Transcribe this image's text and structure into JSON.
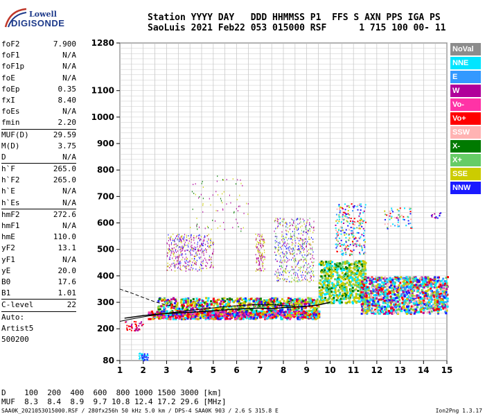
{
  "logo": {
    "line1": "Lowell",
    "line2": "DIGISONDE"
  },
  "header": {
    "line1": "Station YYYY DAY   DDD HHMMSS P1  FFS S AXN PPS IGA PS",
    "line2": "SaoLuis 2021 Feb22 053 015000 RSF      1 715 100 00- 11"
  },
  "params": [
    {
      "k": "foF2",
      "v": "7.900"
    },
    {
      "k": "foF1",
      "v": "N/A"
    },
    {
      "k": "foF1p",
      "v": "N/A"
    },
    {
      "k": "foE",
      "v": "N/A"
    },
    {
      "k": "foEp",
      "v": "0.35"
    },
    {
      "k": "fxI",
      "v": "8.40"
    },
    {
      "k": "foEs",
      "v": "N/A"
    },
    {
      "k": "fmin",
      "v": "2.20"
    },
    {
      "k": "MUF(D)",
      "v": "29.59",
      "sep": true
    },
    {
      "k": "M(D)",
      "v": "3.75"
    },
    {
      "k": "D",
      "v": "N/A"
    },
    {
      "k": "h`F",
      "v": "265.0",
      "sep": true
    },
    {
      "k": "h`F2",
      "v": "265.0"
    },
    {
      "k": "h`E",
      "v": "N/A"
    },
    {
      "k": "h`Es",
      "v": "N/A"
    },
    {
      "k": "hmF2",
      "v": "272.6",
      "sep": true
    },
    {
      "k": "hmF1",
      "v": "N/A"
    },
    {
      "k": "hmE",
      "v": "110.0"
    },
    {
      "k": "yF2",
      "v": "13.1"
    },
    {
      "k": "yF1",
      "v": "N/A"
    },
    {
      "k": "yE",
      "v": "20.0"
    },
    {
      "k": "B0",
      "v": "17.6"
    },
    {
      "k": "B1",
      "v": "1.01"
    },
    {
      "k": "C-level",
      "v": "22",
      "sep": true
    }
  ],
  "notes": [
    "Auto:",
    "Artist5",
    "500200"
  ],
  "legend": [
    {
      "label": "NoVal",
      "color": "#8c8c8c"
    },
    {
      "label": "NNE",
      "color": "#00e5ff"
    },
    {
      "label": "E",
      "color": "#3399ff"
    },
    {
      "label": "W",
      "color": "#b0009a"
    },
    {
      "label": "Vo-",
      "color": "#ff33a6"
    },
    {
      "label": "Vo+",
      "color": "#ff0000"
    },
    {
      "label": "SSW",
      "color": "#ffb3b3"
    },
    {
      "label": "X-",
      "color": "#007a00"
    },
    {
      "label": "X+",
      "color": "#66cc66"
    },
    {
      "label": "SSE",
      "color": "#cccc00"
    },
    {
      "label": "NNW",
      "color": "#1a1aff"
    }
  ],
  "muf_table": {
    "line1": "D    100  200  400  600  800 1000 1500 3000 [km]",
    "line2": "MUF  8.3  8.4  8.9  9.7 10.8 12.4 17.2 29.6 [MHz]"
  },
  "footer": {
    "left": "SAA0K_2021053015000.RSF / 280fx256h 50 kHz 5.0 km / DPS-4 SAA0K 903 / 2.6 S 315.8 E",
    "right": "Ion2Png 1.3.17"
  },
  "chart_data": {
    "type": "scatter",
    "xlabel": "",
    "ylabel": "",
    "xlim": [
      1,
      15
    ],
    "ylim": [
      80,
      1280
    ],
    "x_ticks": [
      "1",
      "2",
      "3",
      "4",
      "5",
      "6",
      "7",
      "8",
      "9",
      "10",
      "11",
      "12",
      "13",
      "14",
      "15"
    ],
    "y_ticks": [
      80,
      200,
      300,
      400,
      500,
      600,
      700,
      800,
      900,
      1000,
      1100,
      1280
    ],
    "grid": true,
    "series": [
      {
        "name": "trace",
        "x": [
          1.2,
          2,
          3,
          4,
          5,
          6,
          7,
          7.5,
          8,
          8.5,
          9,
          9.5,
          10
        ],
        "y": [
          240,
          250,
          258,
          262,
          268,
          275,
          278,
          276,
          280,
          282,
          285,
          290,
          300
        ]
      },
      {
        "name": "profile",
        "x": [
          1.0,
          1.5,
          2.0,
          2.5,
          3.0,
          3.5,
          4.0,
          4.5,
          5.0,
          5.5,
          6.0,
          6.5,
          7.0,
          7.5,
          8.0,
          8.5
        ],
        "y": [
          228,
          237,
          245,
          252,
          259,
          264,
          270,
          274,
          279,
          284,
          287,
          290,
          292,
          291,
          288,
          286
        ]
      },
      {
        "name": "dashed",
        "x": [
          1.0,
          1.5,
          2.0,
          2.5,
          3.0,
          3.5
        ],
        "y": [
          350,
          335,
          318,
          302,
          290,
          282
        ]
      }
    ]
  }
}
